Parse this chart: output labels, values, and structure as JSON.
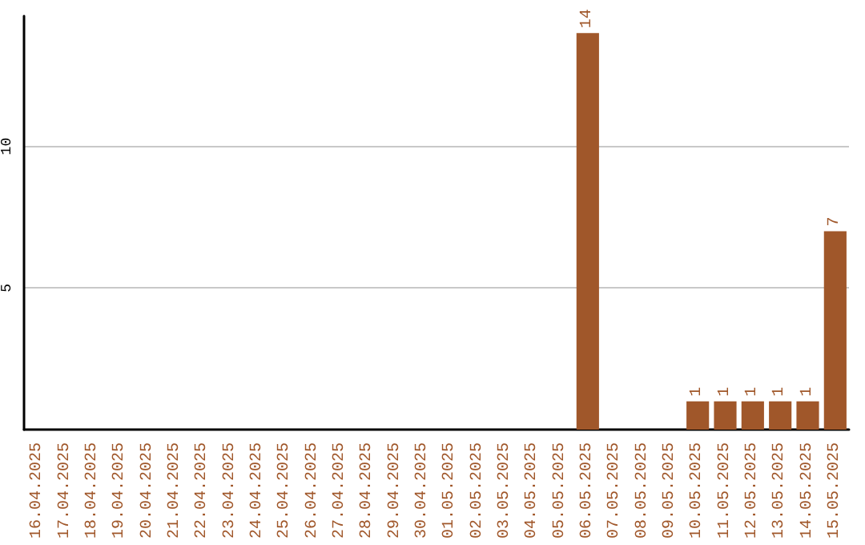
{
  "chart_data": {
    "type": "bar",
    "categories": [
      "16.04.2025",
      "17.04.2025",
      "18.04.2025",
      "19.04.2025",
      "20.04.2025",
      "21.04.2025",
      "22.04.2025",
      "23.04.2025",
      "24.04.2025",
      "25.04.2025",
      "26.04.2025",
      "27.04.2025",
      "28.04.2025",
      "29.04.2025",
      "30.04.2025",
      "01.05.2025",
      "02.05.2025",
      "03.05.2025",
      "04.05.2025",
      "05.05.2025",
      "06.05.2025",
      "07.05.2025",
      "08.05.2025",
      "09.05.2025",
      "10.05.2025",
      "11.05.2025",
      "12.05.2025",
      "13.05.2025",
      "14.05.2025",
      "15.05.2025"
    ],
    "values": [
      0,
      0,
      0,
      0,
      0,
      0,
      0,
      0,
      0,
      0,
      0,
      0,
      0,
      0,
      0,
      0,
      0,
      0,
      0,
      0,
      14,
      0,
      0,
      0,
      1,
      1,
      1,
      1,
      1,
      7
    ],
    "value_labels": [
      null,
      null,
      null,
      null,
      null,
      null,
      null,
      null,
      null,
      null,
      null,
      null,
      null,
      null,
      null,
      null,
      null,
      null,
      null,
      null,
      "14",
      null,
      null,
      null,
      "1",
      "1",
      "1",
      "1",
      "1",
      "7"
    ],
    "color": "#a0572a",
    "ylim": [
      0,
      14.6
    ],
    "yticks": [
      5,
      10
    ],
    "grid": "y"
  }
}
